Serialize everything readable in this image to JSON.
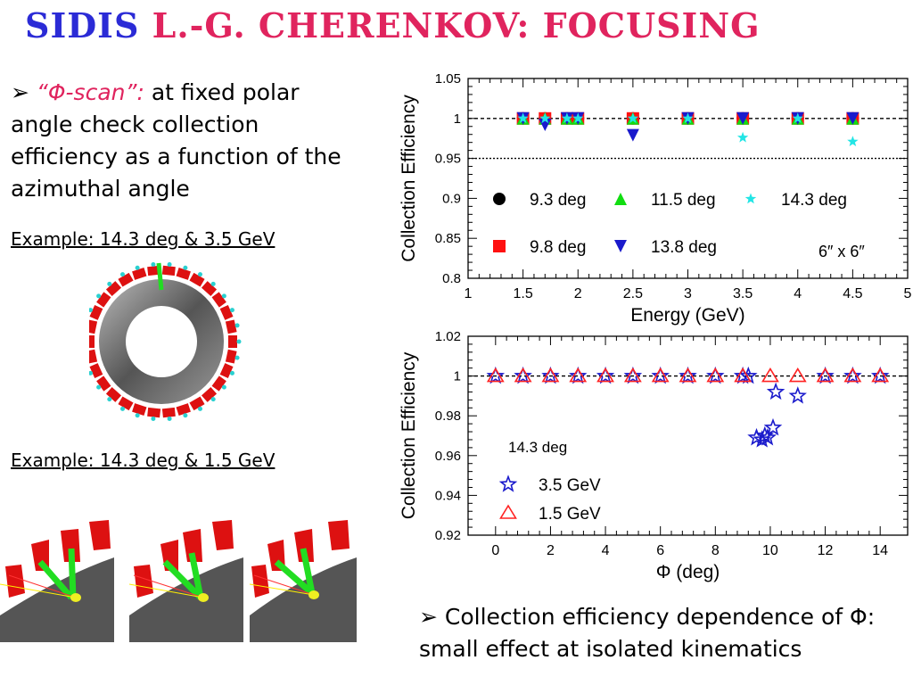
{
  "slide": {
    "title_part1": "SIDIS ",
    "title_part2": "L.-G. CHERENKOV: FOCUSING",
    "bullet_marker": "➢",
    "bullet_quote": "“Φ-scan”:",
    "bullet_text": " at fixed polar angle check collection efficiency as a function of the azimuthal angle",
    "example1": "Example: 14.3 deg & 3.5 GeV",
    "example2": "Example: 14.3 deg & 1.5 GeV",
    "conclusion_marker": "➢",
    "conclusion": " Collection efficiency dependence of Φ: small effect at isolated kinematics"
  },
  "chart_data": [
    {
      "type": "scatter",
      "xlabel": "Energy (GeV)",
      "ylabel": "Collection Efficiency",
      "xlim": [
        1,
        5
      ],
      "ylim": [
        0.8,
        1.05
      ],
      "xticks": [
        1,
        1.5,
        2,
        2.5,
        3,
        3.5,
        4,
        4.5,
        5
      ],
      "yticks": [
        0.8,
        0.85,
        0.9,
        0.95,
        1,
        1.05
      ],
      "reference_lines": [
        1,
        0.95
      ],
      "annotation": "6″ x 6″",
      "series": [
        {
          "name": "9.3 deg",
          "marker": "circle",
          "color": "#000000",
          "x": [
            1.5,
            1.7,
            1.9,
            2.0,
            2.5,
            3.0,
            3.5,
            4.0,
            4.5
          ],
          "y": [
            1,
            1,
            1,
            1,
            1,
            1,
            1,
            1,
            1
          ]
        },
        {
          "name": "9.8 deg",
          "marker": "square",
          "color": "#ff1111",
          "x": [
            1.5,
            1.7,
            1.9,
            2.0,
            2.5,
            3.0,
            3.5,
            4.0,
            4.5
          ],
          "y": [
            1,
            1,
            1,
            1,
            1,
            1,
            1,
            1,
            1
          ]
        },
        {
          "name": "11.5 deg",
          "marker": "triangle-up",
          "color": "#11dd11",
          "x": [
            1.5,
            1.7,
            1.9,
            2.0,
            2.5,
            3.0,
            3.5,
            4.0,
            4.5
          ],
          "y": [
            1,
            1,
            1,
            1,
            1,
            1,
            1,
            1,
            1
          ]
        },
        {
          "name": "13.8 deg",
          "marker": "triangle-down",
          "color": "#1a1acc",
          "x": [
            1.5,
            1.7,
            1.9,
            2.0,
            2.5,
            3.0,
            3.5,
            4.0,
            4.5
          ],
          "y": [
            1,
            0.992,
            1,
            1,
            0.979,
            1,
            1,
            1,
            1
          ]
        },
        {
          "name": "14.3 deg",
          "marker": "star",
          "color": "#22e5e5",
          "x": [
            1.5,
            1.7,
            1.9,
            2.0,
            2.5,
            3.0,
            3.5,
            4.0,
            4.5
          ],
          "y": [
            1,
            1,
            1,
            1,
            1,
            1,
            0.976,
            1,
            0.971
          ]
        }
      ]
    },
    {
      "type": "scatter",
      "xlabel": "Φ (deg)",
      "ylabel": "Collection Efficiency",
      "xlim": [
        -1,
        15
      ],
      "ylim": [
        0.92,
        1.02
      ],
      "xticks": [
        0,
        2,
        4,
        6,
        8,
        10,
        12,
        14
      ],
      "yticks": [
        0.92,
        0.94,
        0.96,
        0.98,
        1,
        1.02
      ],
      "reference_lines": [
        1
      ],
      "annotation": "14.3 deg",
      "series": [
        {
          "name": "3.5 GeV",
          "marker": "open-star",
          "color": "#1a1acc",
          "x": [
            0,
            1,
            2,
            3,
            4,
            5,
            6,
            7,
            8,
            9,
            9.2,
            9.5,
            9.7,
            9.8,
            9.9,
            10.1,
            10.2,
            11,
            12,
            13,
            14
          ],
          "y": [
            1,
            1,
            1,
            1,
            1,
            1,
            1,
            1,
            1,
            1,
            1,
            0.969,
            0.968,
            0.97,
            0.969,
            0.974,
            0.992,
            0.99,
            1,
            1,
            1
          ]
        },
        {
          "name": "1.5 GeV",
          "marker": "open-triangle",
          "color": "#ff2222",
          "x": [
            0,
            1,
            2,
            3,
            4,
            5,
            6,
            7,
            8,
            9,
            10,
            11,
            12,
            13,
            14
          ],
          "y": [
            1,
            1,
            1,
            1,
            1,
            1,
            1,
            1,
            1,
            1,
            1,
            1,
            1,
            1,
            1
          ]
        }
      ]
    }
  ]
}
